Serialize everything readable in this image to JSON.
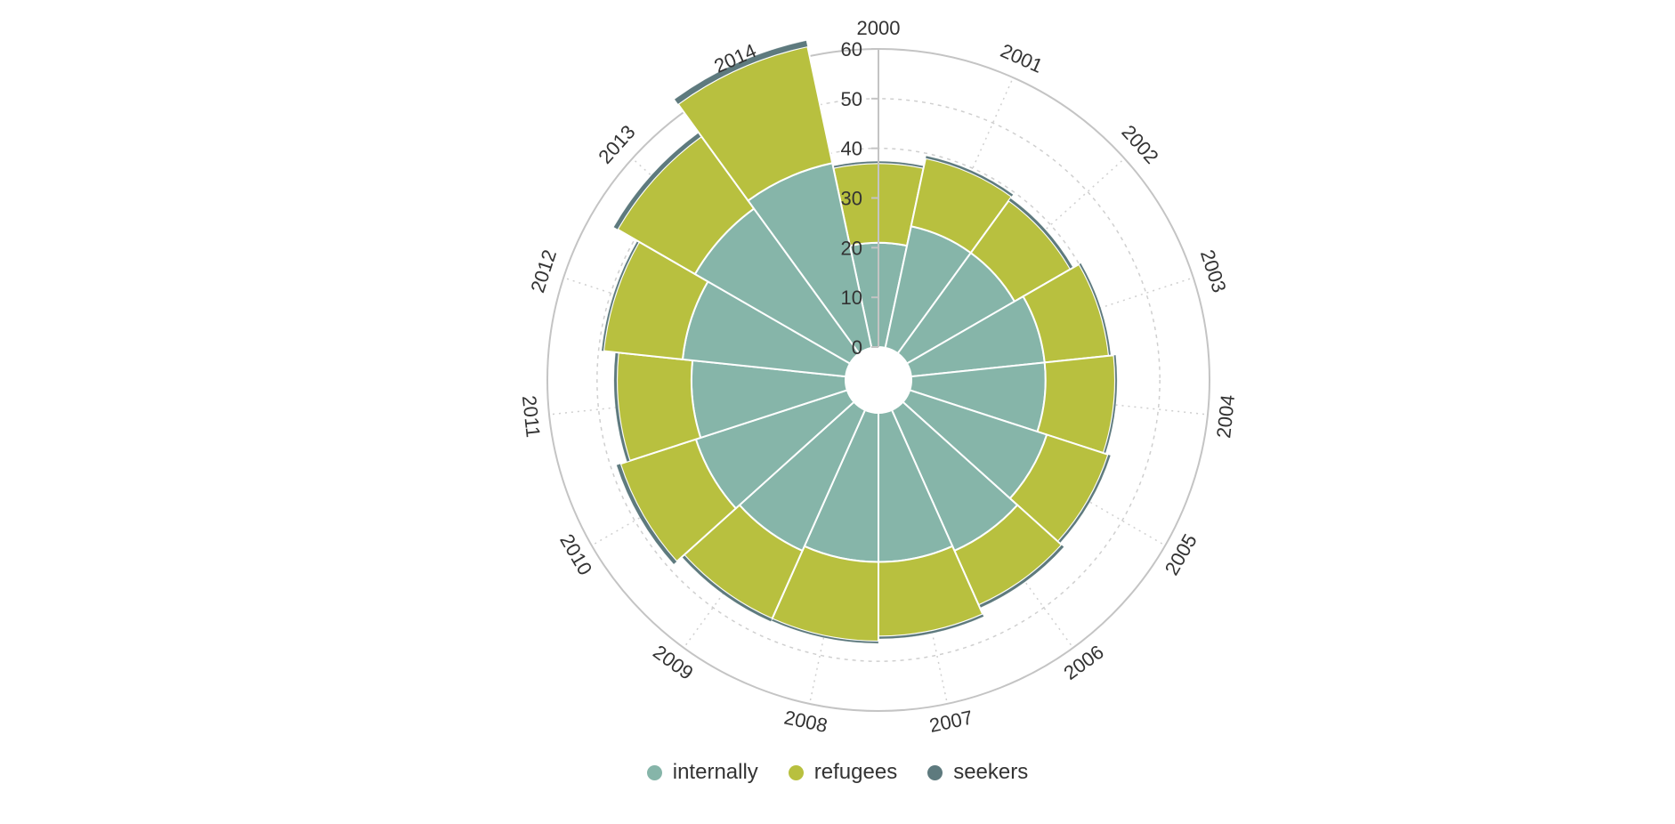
{
  "chart_data": {
    "type": "polar-stacked-bar",
    "categories": [
      "2000",
      "2001",
      "2002",
      "2003",
      "2004",
      "2005",
      "2006",
      "2007",
      "2008",
      "2009",
      "2010",
      "2011",
      "2012",
      "2013",
      "2014"
    ],
    "series": [
      {
        "name": "internally",
        "color": "#86b5a9",
        "values": [
          21,
          25,
          25,
          27,
          27,
          29,
          31,
          30,
          30,
          31,
          32,
          31,
          33,
          36,
          38
        ]
      },
      {
        "name": "refugees",
        "color": "#b8c03f",
        "values": [
          16,
          14,
          13,
          13,
          14,
          13,
          12,
          15,
          16,
          15,
          16,
          15,
          16,
          18,
          24
        ]
      },
      {
        "name": "seekers",
        "color": "#5e7a7e",
        "values": [
          0.4,
          0.5,
          0.6,
          0.4,
          0.4,
          0.5,
          0.6,
          0.5,
          0.4,
          0.6,
          0.8,
          0.6,
          0.4,
          0.9,
          1.2
        ]
      }
    ],
    "radial_ticks": [
      "0",
      "10",
      "20",
      "30",
      "40",
      "50",
      "60"
    ],
    "rmax": 60,
    "legend": {
      "position": "bottom"
    }
  }
}
